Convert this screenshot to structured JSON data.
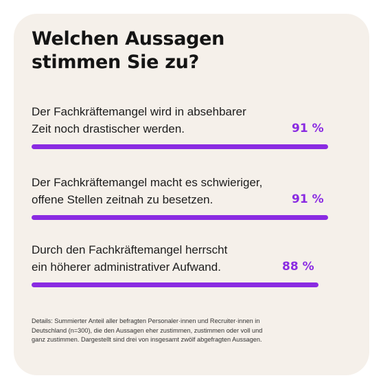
{
  "title_line1": "Welchen Aussagen",
  "title_line2": "stimmen Sie zu?",
  "accent_color": "#8a2be2",
  "card_color": "#f5f0ea",
  "chart_data": {
    "type": "bar",
    "orientation": "horizontal",
    "categories": [
      [
        "Der Fachkräftemangel wird in absehbarer",
        "Zeit noch drastischer werden."
      ],
      [
        "Der Fachkräftemangel macht es schwieriger,",
        "offene Stellen zeitnah zu besetzen."
      ],
      [
        "Durch den Fachkräftemangel herrscht",
        "ein höherer administrativer Aufwand."
      ]
    ],
    "values": [
      91,
      91,
      88
    ],
    "value_labels": [
      "91 %",
      "91 %",
      "88 %"
    ],
    "unit": "%",
    "xlim": [
      0,
      91
    ],
    "grid": false,
    "legend": "none"
  },
  "note_line1": "Details: Summierter Anteil aller befragten Personaler·innen und Recruiter·innen in",
  "note_line2": "Deutschland (n=300), die den Aussagen eher zustimmen, zustimmen oder voll und",
  "note_line3": "ganz zustimmen. Dargestellt sind drei von insgesamt zwölf abgefragten Aussagen."
}
